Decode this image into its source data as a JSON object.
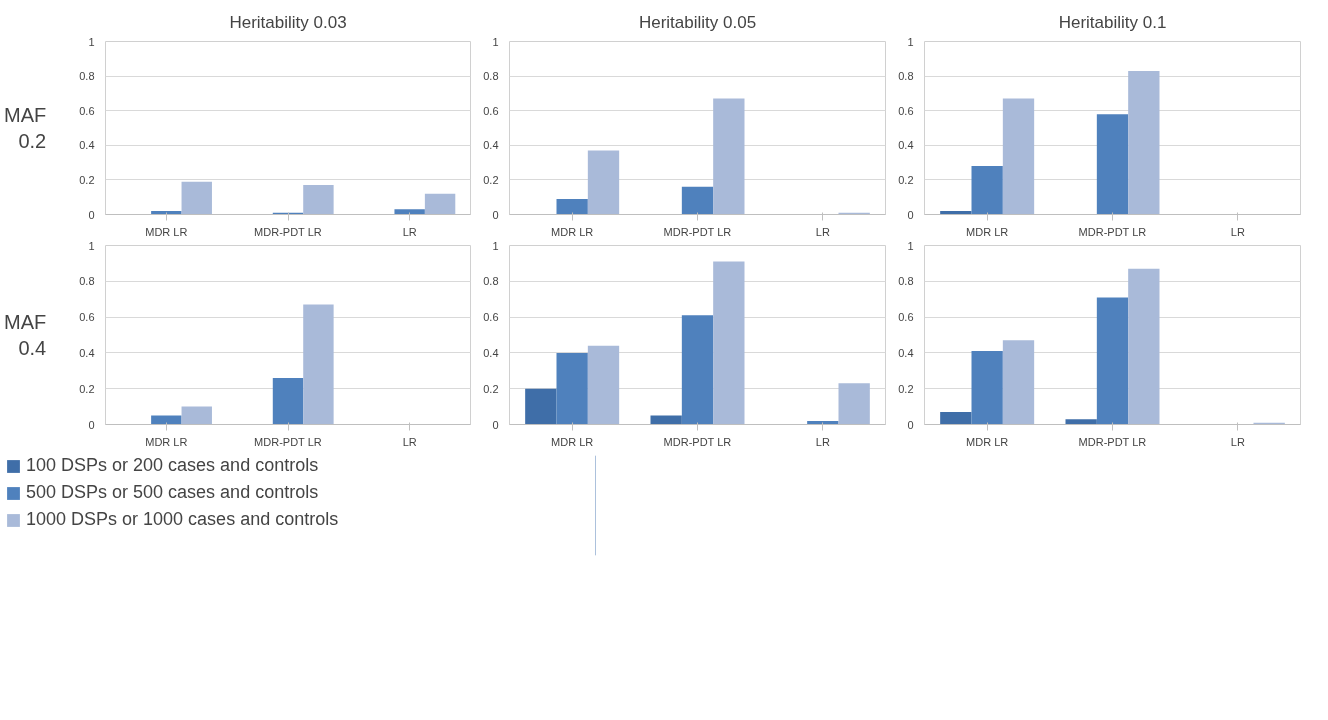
{
  "chart_data": [
    {
      "type": "bar",
      "title": "Heritability 0.03",
      "ylabel": "MAF\n0.2",
      "categories": [
        "MDR LR",
        "MDR-PDT LR",
        "LR"
      ],
      "ylim": [
        0,
        1
      ],
      "yticks": [
        0,
        0.2,
        0.4,
        0.6,
        0.8,
        1
      ],
      "grid": "y",
      "series": [
        {
          "color": "#3f6ea8",
          "values": [
            0,
            0,
            0
          ]
        },
        {
          "color": "#4f81bd",
          "values": [
            0.02,
            0.01,
            0.03
          ]
        },
        {
          "color": "#a9bad9",
          "values": [
            0.19,
            0.17,
            0.12
          ]
        }
      ]
    },
    {
      "type": "bar",
      "title": "Heritability 0.05",
      "categories": [
        "MDR LR",
        "MDR-PDT LR",
        "LR"
      ],
      "ylim": [
        0,
        1
      ],
      "yticks": [
        0,
        0.2,
        0.4,
        0.6,
        0.8,
        1
      ],
      "grid": "y",
      "series": [
        {
          "color": "#3f6ea8",
          "values": [
            0,
            0,
            0
          ]
        },
        {
          "color": "#4f81bd",
          "values": [
            0.09,
            0.16,
            0
          ]
        },
        {
          "color": "#a9bad9",
          "values": [
            0.37,
            0.67,
            0.01
          ]
        }
      ]
    },
    {
      "type": "bar",
      "title": "Heritability 0.1",
      "categories": [
        "MDR LR",
        "MDR-PDT LR",
        "LR"
      ],
      "ylim": [
        0,
        1
      ],
      "yticks": [
        0,
        0.2,
        0.4,
        0.6,
        0.8,
        1
      ],
      "grid": "y",
      "series": [
        {
          "color": "#3f6ea8",
          "values": [
            0.02,
            0,
            0
          ]
        },
        {
          "color": "#4f81bd",
          "values": [
            0.28,
            0.58,
            0
          ]
        },
        {
          "color": "#a9bad9",
          "values": [
            0.67,
            0.83,
            0
          ]
        }
      ]
    },
    {
      "type": "bar",
      "ylabel": "MAF\n0.4",
      "categories": [
        "MDR LR",
        "MDR-PDT LR",
        "LR"
      ],
      "ylim": [
        0,
        1
      ],
      "yticks": [
        0,
        0.2,
        0.4,
        0.6,
        0.8,
        1
      ],
      "grid": "y",
      "legend": "bottom",
      "series": [
        {
          "name": "100 DSPs or 200 cases and controls",
          "color": "#3f6ea8",
          "values": [
            0,
            0,
            0
          ]
        },
        {
          "name": "500 DSPs or 500 cases and controls",
          "color": "#4f81bd",
          "values": [
            0.05,
            0.26,
            0
          ]
        },
        {
          "name": "1000 DSPs or 1000 cases and controls",
          "color": "#a9bad9",
          "values": [
            0.1,
            0.67,
            0
          ]
        }
      ]
    },
    {
      "type": "bar",
      "categories": [
        "MDR LR",
        "MDR-PDT LR",
        "LR"
      ],
      "ylim": [
        0,
        1
      ],
      "yticks": [
        0,
        0.2,
        0.4,
        0.6,
        0.8,
        1
      ],
      "grid": "y",
      "series": [
        {
          "color": "#3f6ea8",
          "values": [
            0.2,
            0.05,
            0
          ]
        },
        {
          "color": "#4f81bd",
          "values": [
            0.4,
            0.61,
            0.02
          ]
        },
        {
          "color": "#a9bad9",
          "values": [
            0.44,
            0.91,
            0.23
          ]
        }
      ]
    },
    {
      "type": "bar",
      "categories": [
        "MDR LR",
        "MDR-PDT LR",
        "LR"
      ],
      "ylim": [
        0,
        1
      ],
      "yticks": [
        0,
        0.2,
        0.4,
        0.6,
        0.8,
        1
      ],
      "grid": "y",
      "series": [
        {
          "color": "#3f6ea8",
          "values": [
            0.07,
            0.03,
            0
          ]
        },
        {
          "color": "#4f81bd",
          "values": [
            0.41,
            0.71,
            0
          ]
        },
        {
          "color": "#a9bad9",
          "values": [
            0.47,
            0.87,
            0.01
          ]
        }
      ]
    }
  ]
}
